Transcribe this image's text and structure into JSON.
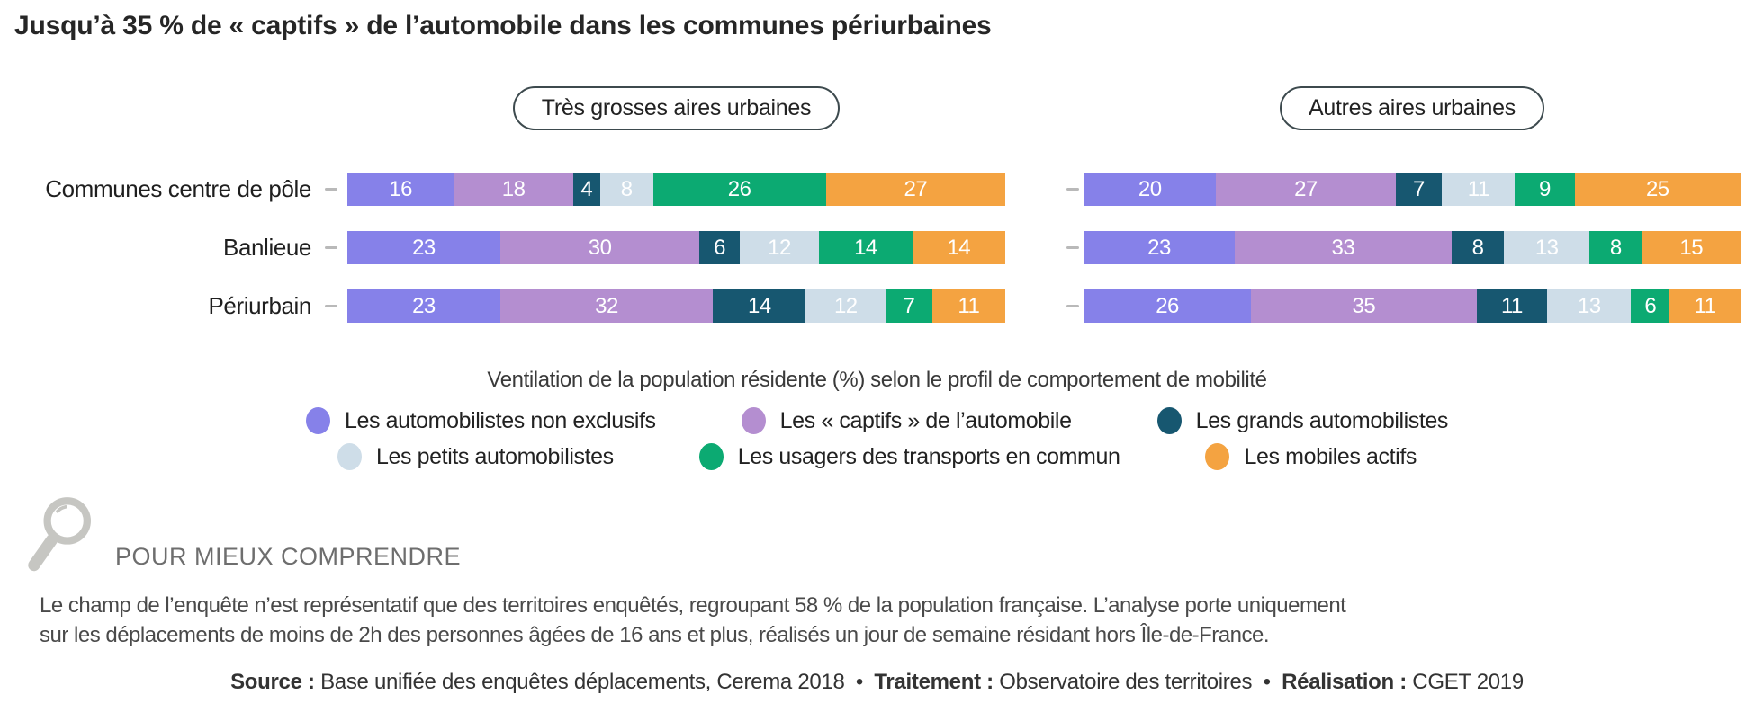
{
  "title": "Jusqu’à 35 % de « captifs » de l’automobile dans les communes périurbaines",
  "chart_data": {
    "type": "bar",
    "variant": "horizontal-stacked",
    "unit": "%",
    "caption": "Ventilation de la population résidente (%) selon le profil de comportement de mobilité",
    "categories": [
      "Communes centre de pôle",
      "Banlieue",
      "Périurbain"
    ],
    "groups": [
      {
        "label": "Très grosses aires urbaines",
        "rows": [
          [
            16,
            18,
            4,
            8,
            26,
            27
          ],
          [
            23,
            30,
            6,
            12,
            14,
            14
          ],
          [
            23,
            32,
            14,
            12,
            7,
            11
          ]
        ]
      },
      {
        "label": "Autres aires urbaines",
        "rows": [
          [
            20,
            27,
            7,
            11,
            9,
            25
          ],
          [
            23,
            33,
            8,
            13,
            8,
            15
          ],
          [
            26,
            35,
            11,
            13,
            6,
            11
          ]
        ]
      }
    ],
    "series": [
      {
        "name": "Les automobilistes non exclusifs",
        "color": "#8681e9"
      },
      {
        "name": "Les « captifs » de l’automobile",
        "color": "#b48ed0"
      },
      {
        "name": "Les grands automobilistes",
        "color": "#175770"
      },
      {
        "name": "Les petits automobilistes",
        "color": "#cedde8"
      },
      {
        "name": "Les usagers des transports en commun",
        "color": "#0caa72"
      },
      {
        "name": "Les mobiles actifs",
        "color": "#f4a341"
      }
    ],
    "legend_rows": [
      [
        0,
        1,
        2
      ],
      [
        3,
        4,
        5
      ]
    ],
    "legend_position": "bottom",
    "value_labels": "inside-white"
  },
  "note": {
    "icon": "magnifier-icon",
    "icon_color": "#c6c6c2",
    "heading": "POUR MIEUX COMPRENDRE",
    "body": "Le champ de l’enquête n’est représentatif que des territoires enquêtés, regroupant 58 % de la population française. L’analyse porte uniquement sur les déplacements de moins de 2h des personnes âgées de 16 ans et plus, réalisés un jour de semaine résidant hors Île-de-France."
  },
  "footer": {
    "source_label": "Source :",
    "source_value": "Base unifiée des enquêtes déplacements, Cerema 2018",
    "separator": "•",
    "treatment_label": "Traitement :",
    "treatment_value": "Observatoire des territoires",
    "realisation_label": "Réalisation :",
    "realisation_value": "CGET 2019"
  }
}
